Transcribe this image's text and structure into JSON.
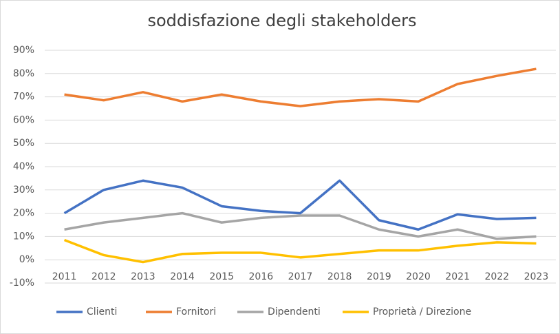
{
  "chart_data": {
    "type": "line",
    "title": "soddisfazione degli stakeholders",
    "categories": [
      "2011",
      "2012",
      "2013",
      "2014",
      "2015",
      "2016",
      "2017",
      "2018",
      "2019",
      "2020",
      "2021",
      "2022",
      "2023"
    ],
    "series": [
      {
        "name": "Clienti",
        "color": "#4472c4",
        "values": [
          20,
          30,
          34,
          31,
          23,
          21,
          20,
          34,
          17,
          13,
          19.5,
          17.5,
          18
        ]
      },
      {
        "name": "Fornitori",
        "color": "#ed7d31",
        "values": [
          71,
          68.5,
          72,
          68,
          71,
          68,
          66,
          68,
          69,
          68,
          75.5,
          79,
          82
        ]
      },
      {
        "name": "Dipendenti",
        "color": "#a5a5a5",
        "values": [
          13,
          16,
          18,
          20,
          16,
          18,
          19,
          19,
          13,
          10,
          13,
          9,
          10
        ]
      },
      {
        "name": "Proprietà / Direzione",
        "color": "#ffc000",
        "values": [
          8.5,
          2,
          -1,
          2.5,
          3,
          3,
          1,
          2.5,
          4,
          4,
          6,
          7.5,
          7
        ]
      }
    ],
    "ylim": [
      -10,
      90
    ],
    "yticks": [
      {
        "value": -10,
        "label": "-10%"
      },
      {
        "value": 0,
        "label": "0%"
      },
      {
        "value": 10,
        "label": "10%"
      },
      {
        "value": 20,
        "label": "20%"
      },
      {
        "value": 30,
        "label": "30%"
      },
      {
        "value": 40,
        "label": "40%"
      },
      {
        "value": 50,
        "label": "50%"
      },
      {
        "value": 60,
        "label": "60%"
      },
      {
        "value": 70,
        "label": "70%"
      },
      {
        "value": 80,
        "label": "80%"
      },
      {
        "value": 90,
        "label": "90%"
      }
    ],
    "grid": true,
    "legend": "bottom"
  }
}
